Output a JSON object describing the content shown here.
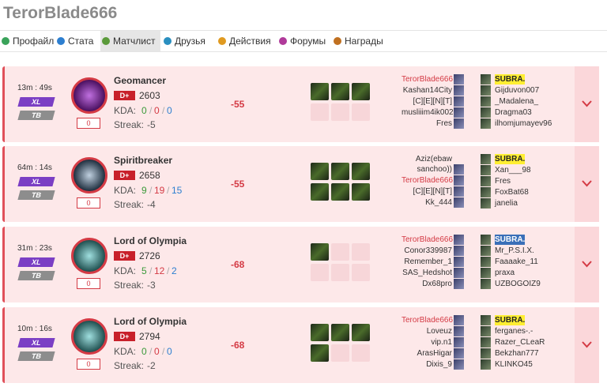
{
  "header": {
    "title": "TerorBlade666"
  },
  "tabs": [
    "Профайл",
    "Стата",
    "Матчлист",
    "Друзья",
    "Действия",
    "Форумы",
    "Награды"
  ],
  "kda_separator": "/",
  "matches": [
    {
      "duration": "13m : 49s",
      "size": "XL",
      "mode": "TB",
      "score": 0,
      "hero": "Geomancer",
      "rank": "D+",
      "mmr": 2603,
      "kda_label": "KDA:",
      "kda": [
        0,
        0,
        0
      ],
      "streak_label": "Streak:",
      "streak": -5,
      "delta": -55,
      "team_a": [
        "TerorBlade666",
        "Kashan14City",
        "[C][E][N][T]",
        "musliiim4ik002",
        "Fres"
      ],
      "team_b": [
        "SUBRA.",
        "Gijduvon007",
        "_Madalena_",
        "Dragma03",
        "ilhomjumayev96"
      ]
    },
    {
      "duration": "64m : 14s",
      "size": "XL",
      "mode": "TB",
      "score": 0,
      "hero": "Spiritbreaker",
      "rank": "D+",
      "mmr": 2658,
      "kda_label": "KDA:",
      "kda": [
        9,
        19,
        15
      ],
      "streak_label": "Streak:",
      "streak": -4,
      "delta": -55,
      "team_a": [
        "Aziz(ebaw sanchoo))",
        "TerorBlade666",
        "[C][E][N][T]",
        "Kk_444"
      ],
      "team_b": [
        "SUBRA.",
        "Xan___98",
        "Fres",
        "FoxBat68",
        "janelia"
      ]
    },
    {
      "duration": "31m : 23s",
      "size": "XL",
      "mode": "TB",
      "score": 0,
      "hero": "Lord of Olympia",
      "rank": "D+",
      "mmr": 2726,
      "kda_label": "KDA:",
      "kda": [
        5,
        12,
        2
      ],
      "streak_label": "Streak:",
      "streak": -3,
      "delta": -68,
      "team_a": [
        "TerorBlade666",
        "Conor339987",
        "Remember_1",
        "SAS_Hedshot",
        "Dx68pro"
      ],
      "team_b": [
        "SUBRA.",
        "Mr_P.S.I.X.",
        "Faaaake_11",
        "praxa",
        "UZBOGOIZ9"
      ]
    },
    {
      "duration": "10m : 16s",
      "size": "XL",
      "mode": "TB",
      "score": 0,
      "hero": "Lord of Olympia",
      "rank": "D+",
      "mmr": 2794,
      "kda_label": "KDA:",
      "kda": [
        0,
        0,
        0
      ],
      "streak_label": "Streak:",
      "streak": -2,
      "delta": -68,
      "team_a": [
        "TerorBlade666",
        "Loveuz",
        "vip.n1",
        "ArasHigar",
        "Dixis_9"
      ],
      "team_b": [
        "SUBRA.",
        "ferganes-.-",
        "Razer_CLeaR",
        "Bekzhan777",
        "KLINKO45"
      ]
    }
  ]
}
